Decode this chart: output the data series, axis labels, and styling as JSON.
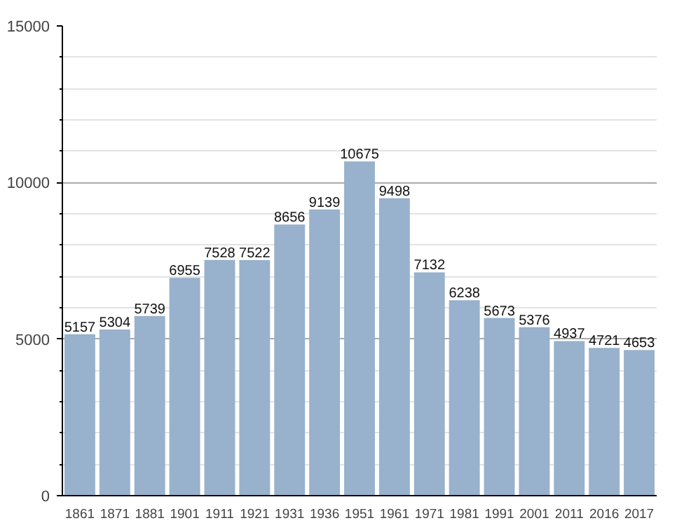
{
  "chart_data": {
    "type": "bar",
    "categories": [
      "1861",
      "1871",
      "1881",
      "1901",
      "1911",
      "1921",
      "1931",
      "1936",
      "1951",
      "1961",
      "1971",
      "1981",
      "1991",
      "2001",
      "2011",
      "2016",
      "2017"
    ],
    "values": [
      5157,
      5304,
      5739,
      6955,
      7528,
      7522,
      8656,
      9139,
      10675,
      9498,
      7132,
      6238,
      5673,
      5376,
      4937,
      4721,
      4653
    ],
    "color": "#98b1cc",
    "ylim": [
      0,
      15000
    ],
    "yticks": [
      0,
      5000,
      10000,
      15000
    ],
    "grid": "y",
    "data_labels": true
  }
}
